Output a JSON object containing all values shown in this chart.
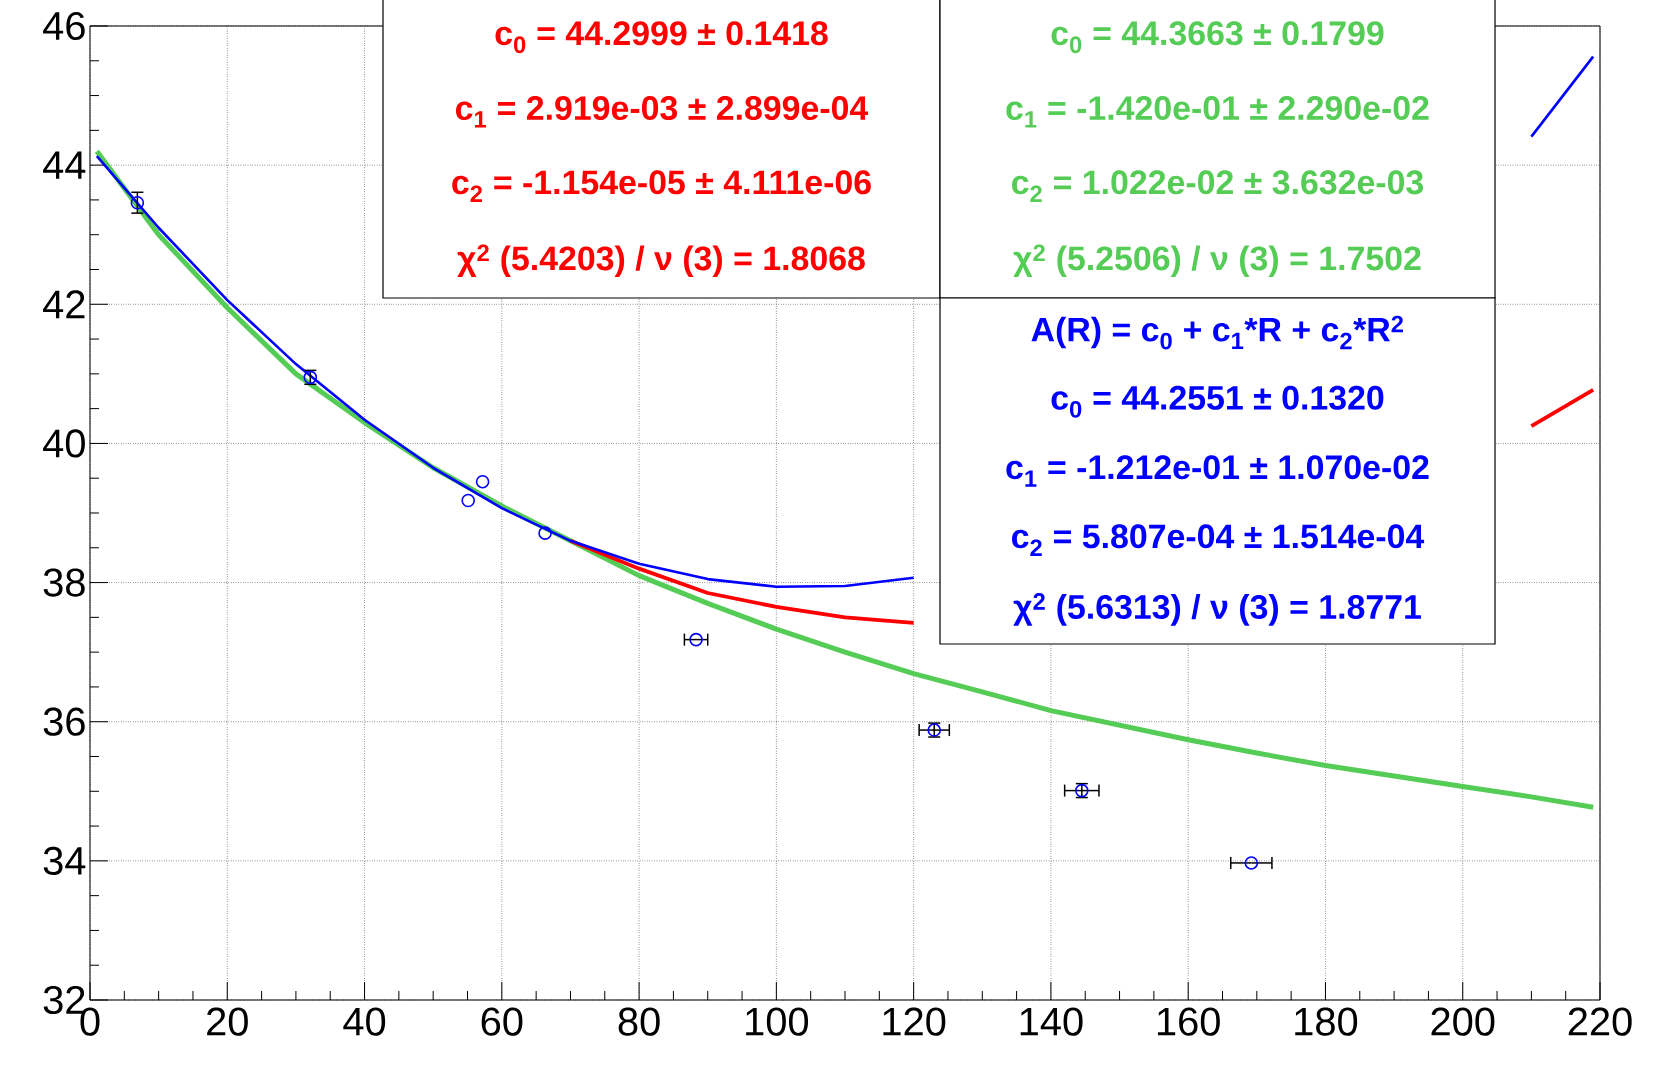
{
  "chart_data": {
    "type": "line",
    "xlim": [
      0,
      220
    ],
    "ylim": [
      32,
      46
    ],
    "xticks": [
      0,
      20,
      40,
      60,
      80,
      100,
      120,
      140,
      160,
      180,
      200,
      220
    ],
    "yticks": [
      32,
      34,
      36,
      38,
      40,
      42,
      44,
      46
    ],
    "grid": true,
    "x": [
      1,
      10,
      20,
      30,
      40,
      50,
      60,
      70,
      80,
      90,
      100,
      110,
      120,
      130,
      140,
      150,
      160,
      170,
      180,
      190,
      200,
      210,
      219
    ],
    "series": [
      {
        "type": "scatter",
        "marker": "circle",
        "color": "#0000ff",
        "x": [
          6.9,
          32.1,
          55.1,
          57.2,
          66.3,
          88.3,
          123.0,
          144.5,
          169.2
        ],
        "values": [
          43.46,
          40.95,
          39.18,
          39.45,
          38.71,
          37.18,
          35.88,
          35.01,
          33.97
        ],
        "errors": [
          0.15,
          0.1,
          null,
          null,
          null,
          null,
          0.1,
          0.1,
          null
        ],
        "xerrors": [
          null,
          null,
          null,
          null,
          null,
          1.7,
          2.2,
          2.5,
          3.0
        ]
      },
      {
        "color": "#ff0000",
        "values": [
          null,
          null,
          null,
          null,
          null,
          null,
          null,
          38.6,
          38.2,
          37.85,
          37.65,
          37.5,
          37.42,
          null,
          null,
          null,
          null,
          null,
          null,
          null,
          null,
          40.25,
          40.77
        ]
      },
      {
        "color": "#55cc55",
        "values": [
          44.2,
          43.0,
          41.95,
          41.0,
          40.3,
          39.65,
          39.1,
          38.6,
          38.1,
          37.7,
          37.33,
          37.0,
          36.69,
          36.43,
          36.16,
          35.95,
          35.74,
          35.55,
          35.37,
          35.22,
          35.07,
          34.92,
          34.77
        ]
      },
      {
        "color": "#0000ff",
        "values": [
          44.13,
          43.1,
          42.06,
          41.14,
          40.34,
          39.65,
          39.07,
          38.6,
          38.27,
          38.05,
          37.94,
          37.95,
          38.07,
          null,
          null,
          null,
          null,
          null,
          null,
          null,
          null,
          44.41,
          45.56
        ]
      }
    ],
    "annotations": [
      "c$_{0}$ = 44.2999 ± 0.1418",
      "c$_{1}$ = 2.919e-03  ± 2.899e-04",
      "c$_{2}$ = -1.154e-05  ± 4.111e-06",
      "χ$^{2}$ (5.4203) /  ν (3) = 1.8068",
      "c$_{0}$ = 44.3663 ± 0.1799",
      "c$_{1}$ = -1.420e-01 ± 2.290e-02",
      "c$_{2}$ = 1.022e-02 ± 3.632e-03",
      "χ$^{2}$ (5.2506) /  ν (3) = 1.7502",
      "A(R) = c$_{0}$ + c$_{1}$*R + c$_{2}$*R$^{2}$",
      "c$_{0}$ = 44.2551 ± 0.1320",
      "c$_{1}$ = -1.212e-01 ± 1.070e-02",
      "c$_{2}$ = 5.807e-04  ± 1.514e-04",
      "χ$^{2}$ (5.6313) /  ν (3) = 1.8771"
    ]
  }
}
